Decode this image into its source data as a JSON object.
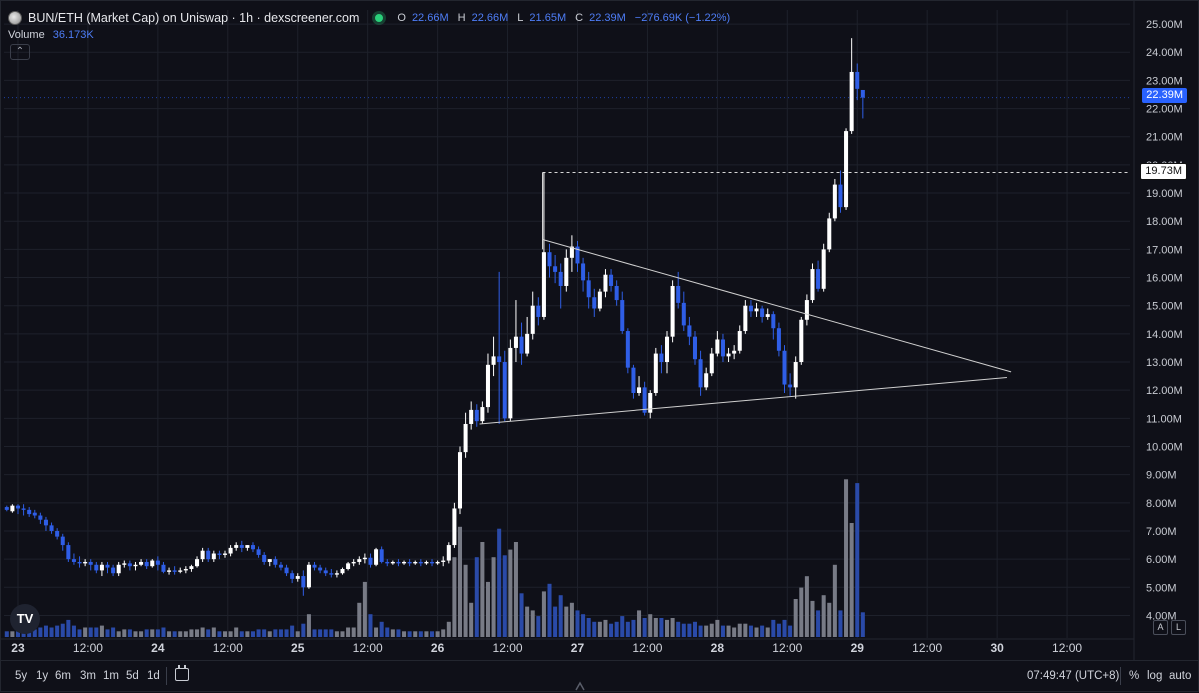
{
  "header": {
    "title": "BUN/ETH (Market Cap) on Uniswap · 1h · dexscreener.com",
    "ohlc": [
      {
        "label": "O",
        "value": "22.66M"
      },
      {
        "label": "H",
        "value": "22.66M"
      },
      {
        "label": "L",
        "value": "21.65M"
      },
      {
        "label": "C",
        "value": "22.39M"
      }
    ],
    "change": "−276.69K (−1.22%)",
    "volume_label": "Volume",
    "volume_value": "36.173K",
    "collapse_glyph": "⌃"
  },
  "colors": {
    "up": "#ffffff",
    "down": "#2f5ee6",
    "vol_up": "#787b86",
    "vol_down": "#2a4aa8",
    "grid": "#1e212b",
    "background": "#0f1018"
  },
  "price_badge": "22.39M",
  "level_badge": "19.73M",
  "logo_text": "TV",
  "mini_buttons": [
    "A",
    "L"
  ],
  "bottom_bar": {
    "timeframes": [
      "5y",
      "1y",
      "6m",
      "3m",
      "1m",
      "5d",
      "1d"
    ],
    "calendar_icon": "calendar-icon",
    "clock": "07:49:47 (UTC+8)",
    "options": [
      "%",
      "log",
      "auto"
    ],
    "settings_icon": "gear-icon"
  },
  "chart_data": {
    "type": "candlestick",
    "unit": "M",
    "y_ticks": [
      4,
      5,
      6,
      7,
      8,
      9,
      10,
      11,
      12,
      13,
      14,
      15,
      16,
      17,
      18,
      19,
      20,
      21,
      22,
      23,
      24,
      25
    ],
    "y_tick_labels": [
      "4.00M",
      "5.00M",
      "6.00M",
      "7.00M",
      "8.00M",
      "9.00M",
      "10.00M",
      "11.00M",
      "12.00M",
      "13.00M",
      "14.00M",
      "15.00M",
      "16.00M",
      "17.00M",
      "18.00M",
      "19.00M",
      "20.00M",
      "21.00M",
      "22.00M",
      "23.00M",
      "24.00M",
      "25.00M"
    ],
    "ylim": [
      3.2,
      25.5
    ],
    "x_ticks": [
      {
        "day": 0,
        "label": "23"
      },
      {
        "day": 0.5,
        "label": "12:00"
      },
      {
        "day": 1,
        "label": "24"
      },
      {
        "day": 1.5,
        "label": "12:00"
      },
      {
        "day": 2,
        "label": "25"
      },
      {
        "day": 2.5,
        "label": "12:00"
      },
      {
        "day": 3,
        "label": "26"
      },
      {
        "day": 3.5,
        "label": "12:00"
      },
      {
        "day": 4,
        "label": "27"
      },
      {
        "day": 4.5,
        "label": "12:00"
      },
      {
        "day": 5,
        "label": "28"
      },
      {
        "day": 5.5,
        "label": "12:00"
      },
      {
        "day": 6,
        "label": "29"
      },
      {
        "day": 6.5,
        "label": "12:00"
      },
      {
        "day": 7,
        "label": "30"
      },
      {
        "day": 7.5,
        "label": "12:00"
      }
    ],
    "xlim_days": [
      -0.1,
      7.95
    ],
    "last_price": 22.39,
    "level": 19.73,
    "level_start_day": 3.75,
    "trendlines": [
      {
        "from": [
          3.75,
          17.35
        ],
        "to": [
          7.1,
          12.65
        ]
      },
      {
        "from": [
          3.3,
          10.8
        ],
        "to": [
          7.07,
          12.45
        ]
      }
    ],
    "candles": [
      [
        -0.08,
        7.85,
        7.9,
        7.75,
        7.7,
        0.3
      ],
      [
        -0.04,
        7.7,
        7.95,
        7.9,
        7.65,
        0.3
      ],
      [
        0,
        7.9,
        7.95,
        7.8,
        7.6,
        0.3
      ],
      [
        0.04,
        7.8,
        7.95,
        7.75,
        7.55,
        0.5
      ],
      [
        0.08,
        7.75,
        7.85,
        7.6,
        7.5,
        0.4
      ],
      [
        0.12,
        7.65,
        7.75,
        7.55,
        7.45,
        0.4
      ],
      [
        0.16,
        7.55,
        7.65,
        7.4,
        7.25,
        0.5
      ],
      [
        0.2,
        7.4,
        7.5,
        7.2,
        7.0,
        0.6
      ],
      [
        0.24,
        7.2,
        7.3,
        7.0,
        6.9,
        0.5
      ],
      [
        0.28,
        7.0,
        7.1,
        6.8,
        6.7,
        0.6
      ],
      [
        0.32,
        6.8,
        6.9,
        6.5,
        6.3,
        0.7
      ],
      [
        0.36,
        6.5,
        6.6,
        6.0,
        5.9,
        0.9
      ],
      [
        0.4,
        6.0,
        6.2,
        5.9,
        5.8,
        0.6
      ],
      [
        0.44,
        5.9,
        6.1,
        5.85,
        5.7,
        0.4
      ],
      [
        0.48,
        5.85,
        6.0,
        5.9,
        5.75,
        0.5
      ],
      [
        0.52,
        5.9,
        6.0,
        5.8,
        5.6,
        0.5
      ],
      [
        0.56,
        5.8,
        5.9,
        5.6,
        5.5,
        0.5
      ],
      [
        0.6,
        5.6,
        5.9,
        5.8,
        5.4,
        0.6
      ],
      [
        0.64,
        5.8,
        5.9,
        5.7,
        5.5,
        0.4
      ],
      [
        0.68,
        5.7,
        5.8,
        5.5,
        5.4,
        0.5
      ],
      [
        0.72,
        5.5,
        5.9,
        5.8,
        5.4,
        0.3
      ],
      [
        0.76,
        5.8,
        5.95,
        5.85,
        5.7,
        0.4
      ],
      [
        0.8,
        5.85,
        5.95,
        5.75,
        5.6,
        0.4
      ],
      [
        0.84,
        5.75,
        5.9,
        5.8,
        5.6,
        0.3
      ],
      [
        0.88,
        5.8,
        6.0,
        5.9,
        5.75,
        0.3
      ],
      [
        0.92,
        5.9,
        6.0,
        5.75,
        5.65,
        0.4
      ],
      [
        0.96,
        5.75,
        6.0,
        5.95,
        5.7,
        0.4
      ],
      [
        1.0,
        5.95,
        6.1,
        5.8,
        5.6,
        0.4
      ],
      [
        1.04,
        5.8,
        5.9,
        5.55,
        5.5,
        0.5
      ],
      [
        1.08,
        5.55,
        5.7,
        5.6,
        5.45,
        0.3
      ],
      [
        1.12,
        5.6,
        5.75,
        5.55,
        5.45,
        0.3
      ],
      [
        1.16,
        5.55,
        5.7,
        5.6,
        5.5,
        0.3
      ],
      [
        1.2,
        5.6,
        5.75,
        5.65,
        5.5,
        0.3
      ],
      [
        1.24,
        5.65,
        5.8,
        5.75,
        5.55,
        0.4
      ],
      [
        1.28,
        5.75,
        6.1,
        6.0,
        5.7,
        0.4
      ],
      [
        1.32,
        6.0,
        6.4,
        6.3,
        5.9,
        0.5
      ],
      [
        1.36,
        6.3,
        6.4,
        6.0,
        5.9,
        0.4
      ],
      [
        1.4,
        6.0,
        6.3,
        6.2,
        5.9,
        0.5
      ],
      [
        1.44,
        6.2,
        6.3,
        6.15,
        6.0,
        0.3
      ],
      [
        1.48,
        6.15,
        6.3,
        6.2,
        6.05,
        0.3
      ],
      [
        1.52,
        6.2,
        6.5,
        6.4,
        6.1,
        0.3
      ],
      [
        1.56,
        6.4,
        6.6,
        6.5,
        6.3,
        0.5
      ],
      [
        1.6,
        6.5,
        6.65,
        6.4,
        6.25,
        0.3
      ],
      [
        1.64,
        6.4,
        6.5,
        6.5,
        6.3,
        0.3
      ],
      [
        1.68,
        6.5,
        6.6,
        6.35,
        6.25,
        0.3
      ],
      [
        1.72,
        6.35,
        6.45,
        6.15,
        6.05,
        0.4
      ],
      [
        1.76,
        6.15,
        6.25,
        5.9,
        5.8,
        0.4
      ],
      [
        1.8,
        5.9,
        6.0,
        6.0,
        5.75,
        0.3
      ],
      [
        1.84,
        6.0,
        6.1,
        5.8,
        5.7,
        0.4
      ],
      [
        1.88,
        5.8,
        5.9,
        5.7,
        5.6,
        0.4
      ],
      [
        1.92,
        5.7,
        5.8,
        5.5,
        5.4,
        0.4
      ],
      [
        1.96,
        5.5,
        5.6,
        5.3,
        5.15,
        0.6
      ],
      [
        2.0,
        5.3,
        5.5,
        5.4,
        5.2,
        0.3
      ],
      [
        2.04,
        5.4,
        5.6,
        5.0,
        4.7,
        0.7
      ],
      [
        2.08,
        5.0,
        5.9,
        5.8,
        4.95,
        1.2
      ],
      [
        2.12,
        5.8,
        5.9,
        5.7,
        5.6,
        0.4
      ],
      [
        2.16,
        5.7,
        5.8,
        5.6,
        5.5,
        0.4
      ],
      [
        2.2,
        5.6,
        5.7,
        5.5,
        5.4,
        0.4
      ],
      [
        2.24,
        5.5,
        5.65,
        5.45,
        5.35,
        0.4
      ],
      [
        2.28,
        5.45,
        5.6,
        5.5,
        5.35,
        0.3
      ],
      [
        2.32,
        5.5,
        5.7,
        5.65,
        5.45,
        0.3
      ],
      [
        2.36,
        5.65,
        5.9,
        5.85,
        5.6,
        0.5
      ],
      [
        2.4,
        5.85,
        6.0,
        5.9,
        5.75,
        0.5
      ],
      [
        2.44,
        5.9,
        6.1,
        6.0,
        5.8,
        1.8
      ],
      [
        2.48,
        6.0,
        6.2,
        6.05,
        5.85,
        2.9
      ],
      [
        2.52,
        6.05,
        6.2,
        5.8,
        5.7,
        1.2
      ],
      [
        2.56,
        5.8,
        6.4,
        6.35,
        5.75,
        0.5
      ],
      [
        2.6,
        6.35,
        6.45,
        5.9,
        5.85,
        0.8
      ],
      [
        2.64,
        5.9,
        6.0,
        5.85,
        5.75,
        0.5
      ],
      [
        2.68,
        5.85,
        5.95,
        5.9,
        5.8,
        0.4
      ],
      [
        2.72,
        5.9,
        6.0,
        5.85,
        5.75,
        0.4
      ],
      [
        2.76,
        5.85,
        5.95,
        5.9,
        5.8,
        0.3
      ],
      [
        2.8,
        5.9,
        6.0,
        5.85,
        5.75,
        0.3
      ],
      [
        2.84,
        5.85,
        5.95,
        5.9,
        5.8,
        0.3
      ],
      [
        2.88,
        5.9,
        6.0,
        5.85,
        5.75,
        0.3
      ],
      [
        2.92,
        5.85,
        5.95,
        5.9,
        5.8,
        0.3
      ],
      [
        2.96,
        5.9,
        6.0,
        5.85,
        5.75,
        0.3
      ],
      [
        3.0,
        5.85,
        5.95,
        5.9,
        5.8,
        0.3
      ],
      [
        3.04,
        5.9,
        6.1,
        5.95,
        5.75,
        0.4
      ],
      [
        3.08,
        5.95,
        6.6,
        6.5,
        5.85,
        0.8
      ],
      [
        3.12,
        6.5,
        8.0,
        7.8,
        6.4,
        4.2
      ],
      [
        3.16,
        7.8,
        10.0,
        9.8,
        7.6,
        5.8
      ],
      [
        3.2,
        9.8,
        11.2,
        10.8,
        9.6,
        3.8
      ],
      [
        3.24,
        10.8,
        11.6,
        11.3,
        10.6,
        1.8
      ],
      [
        3.28,
        11.3,
        11.5,
        10.9,
        10.7,
        4.2
      ],
      [
        3.32,
        10.9,
        11.6,
        11.4,
        10.8,
        5.0
      ],
      [
        3.36,
        11.4,
        13.3,
        12.9,
        11.2,
        2.9
      ],
      [
        3.4,
        12.9,
        13.9,
        13.2,
        12.5,
        4.2
      ],
      [
        3.44,
        13.2,
        16.2,
        13.0,
        10.8,
        5.7
      ],
      [
        3.48,
        13.0,
        13.4,
        11.0,
        10.9,
        4.3
      ],
      [
        3.52,
        11.0,
        13.8,
        13.5,
        10.9,
        4.6
      ],
      [
        3.56,
        13.5,
        15.2,
        13.9,
        13.0,
        5.0
      ],
      [
        3.6,
        13.9,
        14.4,
        13.3,
        12.9,
        2.3
      ],
      [
        3.64,
        13.3,
        14.6,
        14.0,
        13.2,
        1.6
      ],
      [
        3.68,
        14.0,
        15.5,
        15.0,
        13.8,
        1.4
      ],
      [
        3.72,
        15.0,
        15.3,
        14.6,
        14.3,
        1.1
      ],
      [
        3.76,
        14.6,
        19.73,
        16.9,
        14.5,
        2.4
      ],
      [
        3.8,
        16.9,
        17.2,
        16.4,
        16.0,
        2.8
      ],
      [
        3.84,
        16.4,
        16.8,
        16.2,
        15.8,
        1.6
      ],
      [
        3.88,
        16.2,
        16.5,
        15.7,
        14.9,
        2.2
      ],
      [
        3.92,
        15.7,
        17.0,
        16.7,
        15.5,
        1.6
      ],
      [
        3.96,
        16.7,
        17.5,
        17.1,
        16.2,
        1.8
      ],
      [
        4.0,
        17.1,
        17.3,
        16.5,
        16.2,
        1.4
      ],
      [
        4.04,
        16.5,
        16.7,
        15.9,
        15.5,
        1.2
      ],
      [
        4.08,
        15.9,
        16.2,
        15.3,
        14.9,
        1.0
      ],
      [
        4.12,
        15.3,
        15.6,
        14.9,
        14.6,
        0.8
      ],
      [
        4.16,
        14.9,
        15.6,
        15.5,
        14.8,
        0.8
      ],
      [
        4.2,
        15.5,
        16.3,
        16.1,
        15.3,
        0.9
      ],
      [
        4.24,
        16.1,
        16.3,
        15.7,
        15.5,
        0.7
      ],
      [
        4.28,
        15.7,
        15.9,
        15.2,
        15.0,
        0.8
      ],
      [
        4.32,
        15.2,
        15.5,
        14.1,
        14.0,
        1.1
      ],
      [
        4.36,
        14.1,
        14.2,
        12.8,
        12.6,
        0.8
      ],
      [
        4.4,
        12.8,
        12.9,
        11.9,
        11.7,
        0.9
      ],
      [
        4.44,
        11.9,
        12.5,
        12.1,
        11.8,
        1.4
      ],
      [
        4.48,
        12.1,
        12.3,
        11.2,
        11.1,
        1.0
      ],
      [
        4.52,
        11.2,
        12.0,
        11.9,
        11.0,
        1.2
      ],
      [
        4.56,
        11.9,
        13.5,
        13.3,
        11.8,
        1.0
      ],
      [
        4.6,
        13.3,
        13.6,
        13.0,
        12.6,
        1.0
      ],
      [
        4.64,
        13.0,
        14.1,
        13.9,
        12.6,
        0.9
      ],
      [
        4.68,
        13.9,
        15.9,
        15.7,
        13.7,
        1.0
      ],
      [
        4.72,
        15.7,
        16.2,
        15.1,
        14.9,
        0.8
      ],
      [
        4.76,
        15.1,
        15.5,
        14.3,
        14.1,
        0.7
      ],
      [
        4.8,
        14.3,
        14.6,
        13.9,
        13.6,
        0.7
      ],
      [
        4.84,
        13.9,
        14.1,
        13.1,
        12.9,
        0.8
      ],
      [
        4.88,
        13.1,
        13.4,
        12.1,
        11.8,
        0.6
      ],
      [
        4.92,
        12.1,
        12.8,
        12.6,
        12.0,
        0.6
      ],
      [
        4.96,
        12.6,
        13.5,
        13.3,
        12.5,
        0.7
      ],
      [
        5.0,
        13.3,
        14.1,
        13.8,
        13.2,
        0.9
      ],
      [
        5.04,
        13.8,
        14.0,
        13.2,
        13.0,
        0.6
      ],
      [
        5.08,
        13.2,
        13.5,
        13.3,
        13.0,
        0.6
      ],
      [
        5.12,
        13.3,
        13.6,
        13.4,
        13.1,
        0.5
      ],
      [
        5.16,
        13.4,
        14.3,
        14.1,
        13.3,
        0.7
      ],
      [
        5.2,
        14.1,
        15.2,
        15.0,
        14.0,
        0.7
      ],
      [
        5.24,
        15.0,
        15.2,
        14.8,
        14.6,
        0.6
      ],
      [
        5.28,
        14.8,
        15.1,
        14.9,
        14.6,
        0.5
      ],
      [
        5.32,
        14.9,
        15.0,
        14.6,
        14.4,
        0.6
      ],
      [
        5.36,
        14.6,
        14.9,
        14.7,
        14.5,
        0.5
      ],
      [
        5.4,
        14.7,
        14.8,
        14.2,
        13.8,
        0.9
      ],
      [
        5.44,
        14.2,
        14.4,
        13.4,
        13.2,
        0.7
      ],
      [
        5.48,
        13.4,
        13.6,
        12.2,
        11.9,
        0.9
      ],
      [
        5.52,
        12.2,
        12.6,
        12.1,
        11.8,
        0.6
      ],
      [
        5.56,
        12.1,
        13.2,
        13.0,
        11.7,
        2.0
      ],
      [
        5.6,
        13.0,
        14.6,
        14.5,
        12.9,
        2.6
      ],
      [
        5.64,
        14.5,
        15.4,
        15.2,
        14.3,
        3.2
      ],
      [
        5.68,
        15.2,
        16.5,
        16.3,
        15.1,
        1.9
      ],
      [
        5.72,
        16.3,
        16.6,
        15.6,
        15.5,
        1.4
      ],
      [
        5.76,
        15.6,
        17.2,
        17.0,
        15.5,
        2.2
      ],
      [
        5.8,
        17.0,
        18.3,
        18.1,
        16.9,
        1.8
      ],
      [
        5.84,
        18.1,
        19.5,
        19.3,
        18.0,
        3.8
      ],
      [
        5.88,
        19.3,
        19.8,
        18.5,
        18.3,
        1.4
      ],
      [
        5.92,
        18.5,
        21.3,
        21.2,
        18.4,
        8.3
      ],
      [
        5.96,
        21.2,
        24.5,
        23.3,
        21.1,
        6.0
      ],
      [
        6.0,
        23.3,
        23.6,
        22.7,
        22.3,
        8.1
      ],
      [
        6.04,
        22.66,
        22.66,
        22.39,
        21.65,
        1.3
      ]
    ]
  }
}
